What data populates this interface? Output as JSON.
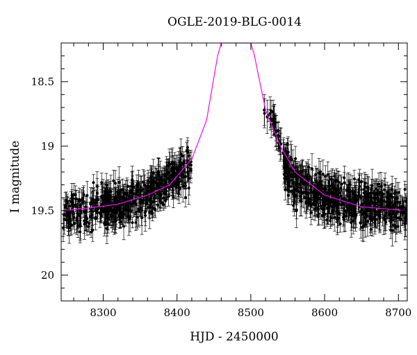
{
  "chart_data": {
    "type": "scatter",
    "title": "OGLE-2019-BLG-0014",
    "xlabel": "HJD - 2450000",
    "ylabel": "I magnitude",
    "xlim": [
      8243,
      8712
    ],
    "ylim": [
      20.2,
      18.2
    ],
    "y_inverted": true,
    "grid": false,
    "x_ticks": [
      8300,
      8400,
      8500,
      8600,
      8700
    ],
    "x_tick_labels": [
      "8300",
      "8400",
      "8500",
      "8600",
      "8700"
    ],
    "y_ticks": [
      18.5,
      19,
      19.5,
      20
    ],
    "y_tick_labels": [
      "18.5",
      "19",
      "19.5",
      "20"
    ],
    "colors": {
      "data": "#000000",
      "model": "#ff00ff"
    },
    "model": {
      "type": "microlensing-fit",
      "baseline_mag": 19.5,
      "peak_time": 8480,
      "approx_points": [
        {
          "x": 8245,
          "y": 19.5
        },
        {
          "x": 8280,
          "y": 19.48
        },
        {
          "x": 8320,
          "y": 19.45
        },
        {
          "x": 8360,
          "y": 19.38
        },
        {
          "x": 8390,
          "y": 19.3
        },
        {
          "x": 8420,
          "y": 19.1
        },
        {
          "x": 8440,
          "y": 18.8
        },
        {
          "x": 8455,
          "y": 18.3
        },
        {
          "x": 8460,
          "y": 18.2
        },
        {
          "x": 8500,
          "y": 18.2
        },
        {
          "x": 8505,
          "y": 18.3
        },
        {
          "x": 8520,
          "y": 18.72
        },
        {
          "x": 8540,
          "y": 19.0
        },
        {
          "x": 8560,
          "y": 19.2
        },
        {
          "x": 8600,
          "y": 19.38
        },
        {
          "x": 8650,
          "y": 19.47
        },
        {
          "x": 8710,
          "y": 19.5
        }
      ]
    },
    "data_segments": [
      {
        "x_start": 8245,
        "x_end": 8420,
        "trend": [
          {
            "x": 8245,
            "y": 19.52
          },
          {
            "x": 8300,
            "y": 19.48
          },
          {
            "x": 8350,
            "y": 19.42
          },
          {
            "x": 8380,
            "y": 19.32
          },
          {
            "x": 8400,
            "y": 19.22
          },
          {
            "x": 8420,
            "y": 19.18
          }
        ],
        "scatter": 0.13,
        "n_points": 560
      },
      {
        "x_start": 8518,
        "x_end": 8545,
        "trend": [
          {
            "x": 8518,
            "y": 18.75
          },
          {
            "x": 8525,
            "y": 18.8
          },
          {
            "x": 8530,
            "y": 18.78
          },
          {
            "x": 8535,
            "y": 18.88
          },
          {
            "x": 8540,
            "y": 18.98
          },
          {
            "x": 8545,
            "y": 19.05
          }
        ],
        "scatter": 0.05,
        "n_points": 40
      },
      {
        "x_start": 8545,
        "x_end": 8712,
        "trend": [
          {
            "x": 8545,
            "y": 19.15
          },
          {
            "x": 8560,
            "y": 19.28
          },
          {
            "x": 8600,
            "y": 19.4
          },
          {
            "x": 8650,
            "y": 19.45
          },
          {
            "x": 8712,
            "y": 19.5
          }
        ],
        "scatter": 0.14,
        "n_points": 600
      }
    ]
  }
}
